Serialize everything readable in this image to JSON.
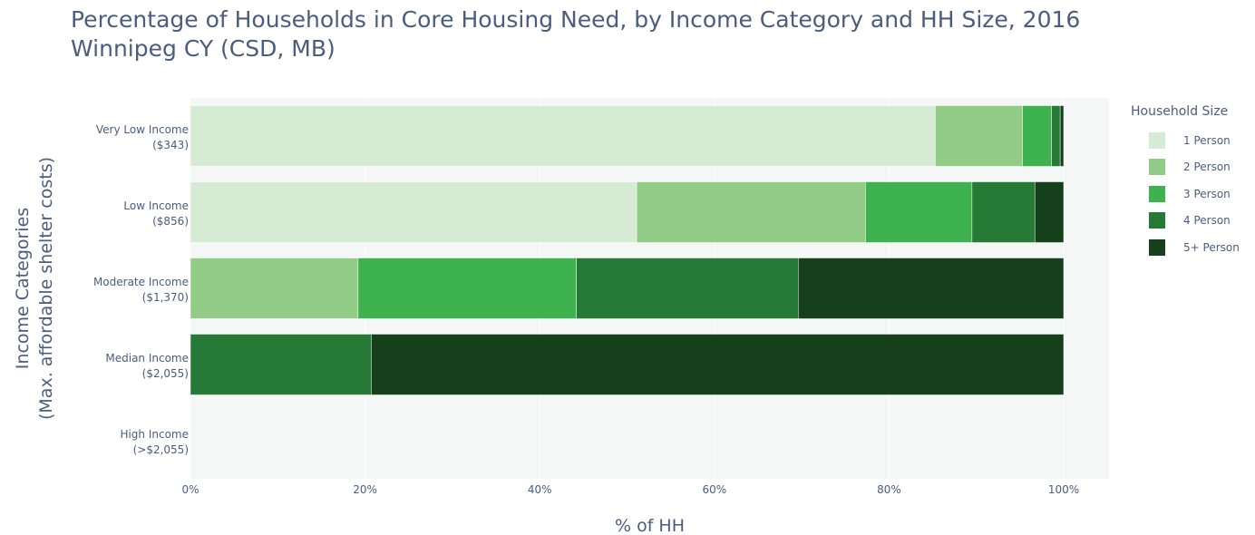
{
  "header": {
    "title_line1": "Percentage of Households in Core Housing Need, by Income Category and HH Size, 2016",
    "title_line2": "Winnipeg CY (CSD, MB)"
  },
  "legend": {
    "title": "Household Size",
    "items": [
      {
        "label": "1 Person",
        "color": "#d6ebd4"
      },
      {
        "label": "2 Person",
        "color": "#93cc87"
      },
      {
        "label": "3 Person",
        "color": "#3db24e"
      },
      {
        "label": "4 Person",
        "color": "#277a35"
      },
      {
        "label": "5+ Person",
        "color": "#163f1c"
      }
    ]
  },
  "chart_data": {
    "type": "bar",
    "orientation": "horizontal",
    "stacked": true,
    "title": "Percentage of Households in Core Housing Need, by Income Category and HH Size, 2016 Winnipeg CY (CSD, MB)",
    "xlabel": "% of HH",
    "ylabel": [
      "Income Categories",
      "(Max. affordable shelter costs)"
    ],
    "xlim": [
      0,
      105
    ],
    "x_ticks": [
      "0%",
      "20%",
      "40%",
      "60%",
      "80%",
      "100%"
    ],
    "x_tick_values": [
      0,
      20,
      40,
      60,
      80,
      100
    ],
    "grid": true,
    "legend_position": "right",
    "categories": [
      [
        "Very Low Income",
        "($343)"
      ],
      [
        "Low Income",
        "($856)"
      ],
      [
        "Moderate Income",
        "($1,370)"
      ],
      [
        "Median Income",
        "($2,055)"
      ],
      [
        "High Income",
        "(>$2,055)"
      ]
    ],
    "series": [
      {
        "name": "1 Person",
        "color": "#d6ebd4",
        "values": [
          85.3,
          51.1,
          0,
          0,
          0
        ]
      },
      {
        "name": "2 Person",
        "color": "#93cc87",
        "values": [
          10.0,
          26.2,
          19.2,
          0,
          0
        ]
      },
      {
        "name": "3 Person",
        "color": "#3db24e",
        "values": [
          3.3,
          12.2,
          25.0,
          0,
          0
        ]
      },
      {
        "name": "4 Person",
        "color": "#277a35",
        "values": [
          1.0,
          7.2,
          25.4,
          20.7,
          0
        ]
      },
      {
        "name": "5+ Person",
        "color": "#163f1c",
        "values": [
          0.4,
          3.3,
          30.4,
          79.3,
          0
        ]
      }
    ]
  }
}
